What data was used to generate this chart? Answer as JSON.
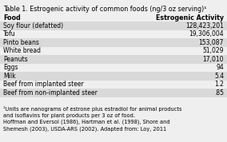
{
  "title": "Table 1. Estrogenic activity of common foods (ng/3 oz serving)¹",
  "col_header_food": "Food",
  "col_header_activity": "Estrogenic Activity",
  "rows": [
    {
      "food": "Soy flour (defatted)",
      "activity": "128,423,201",
      "shaded": true,
      "bold": false
    },
    {
      "food": "Tofu",
      "activity": "19,306,004",
      "shaded": false,
      "bold": false
    },
    {
      "food": "Pinto beans",
      "activity": "153,087",
      "shaded": true,
      "bold": false
    },
    {
      "food": "White bread",
      "activity": "51,029",
      "shaded": false,
      "bold": false
    },
    {
      "food": "Peanuts",
      "activity": "17,010",
      "shaded": true,
      "bold": false
    },
    {
      "food": "Eggs",
      "activity": "94",
      "shaded": false,
      "bold": false
    },
    {
      "food": "Milk",
      "activity": "5.4",
      "shaded": true,
      "bold": false
    },
    {
      "food": "Beef from implanted steer",
      "activity": "1.2",
      "shaded": false,
      "bold": false
    },
    {
      "food": "Beef from non-implanted steer",
      "activity": ".85",
      "shaded": true,
      "bold": false
    }
  ],
  "footnotes": [
    "¹Units are nanograms of estrone plus estradiol for animal products",
    "and isoflavins for plant products per 3 oz of food.",
    "Hoffman and Eversol (1986), Hartman et al. (1998), Shore and",
    "Shemesh (2003), USDA-ARS (2002). Adapted from: Loy, 2011"
  ],
  "bg_color": "#efefef",
  "shaded_color": "#d9d9d9",
  "title_fontsize": 5.8,
  "header_fontsize": 5.8,
  "row_fontsize": 5.5,
  "footnote_fontsize": 4.8
}
